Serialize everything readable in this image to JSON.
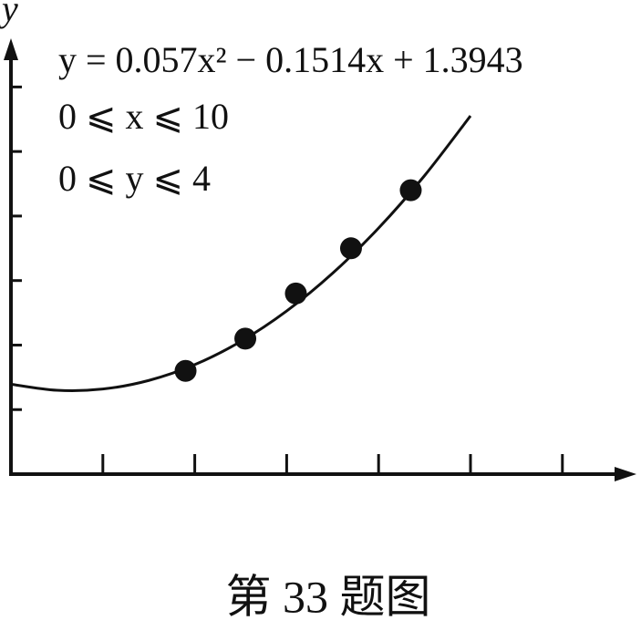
{
  "chart_data": {
    "type": "scatter",
    "y_label": "y",
    "annotations": [
      "y = 0.057x² − 0.1514x + 1.3943",
      "0 ⩽ x ⩽ 10",
      "0 ⩽ y ⩽ 4"
    ],
    "caption": "第 33 题图",
    "x": [
      3.8,
      5.1,
      6.2,
      7.4,
      8.7
    ],
    "values": [
      1.6,
      2.1,
      2.8,
      3.5,
      4.4
    ],
    "color": "#111111",
    "curve": {
      "x": [
        0,
        1,
        2,
        3,
        4,
        5,
        6,
        7,
        8,
        9,
        10
      ],
      "values": [
        1.394,
        1.3,
        1.319,
        1.452,
        1.697,
        2.056,
        2.528,
        3.114,
        3.813,
        4.626,
        5.552
      ]
    },
    "xlim": [
      0,
      13
    ],
    "ylim": [
      0,
      6.5
    ],
    "xticks": [
      2,
      4,
      6,
      8,
      10,
      12
    ],
    "yticks": [
      1,
      2,
      3,
      4,
      5,
      6
    ]
  }
}
